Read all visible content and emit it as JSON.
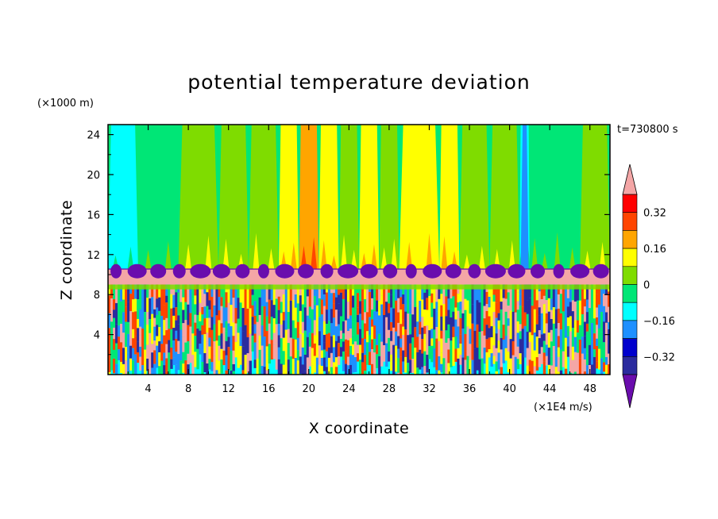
{
  "chart_data": {
    "type": "heatmap",
    "title": "potential temperature deviation",
    "xlabel": "X coordinate",
    "ylabel": "Z coordinate",
    "x_unit": "(×1E4 m/s)",
    "y_unit": "(×1000 m)",
    "time_label": "t=730800 s",
    "xlim": [
      0,
      50
    ],
    "ylim": [
      0,
      25
    ],
    "x_ticks": [
      4,
      8,
      12,
      16,
      20,
      24,
      28,
      32,
      36,
      40,
      44,
      48
    ],
    "y_ticks": [
      4,
      8,
      12,
      16,
      20,
      24
    ],
    "colorbar": {
      "levels": [
        -0.4,
        -0.32,
        -0.24,
        -0.16,
        -0.08,
        0,
        0.08,
        0.16,
        0.24,
        0.32,
        0.4
      ],
      "colors": [
        "#6a0dad",
        "#2b2b9e",
        "#0000cd",
        "#1e90ff",
        "#00ffff",
        "#00e676",
        "#7fdc00",
        "#ffff00",
        "#ffa500",
        "#ff4500",
        "#ff0000",
        "#f4a6a6"
      ],
      "under_color": "#6a0dad",
      "over_color": "#f4a6a6",
      "tick_labels": [
        "0.32",
        "0.16",
        "0",
        "−0.16",
        "−0.32"
      ],
      "tick_values": [
        0.32,
        0.16,
        0,
        -0.16,
        -0.32
      ]
    },
    "upper_bands": [
      {
        "x0": 0,
        "x1": 3,
        "value": -0.1
      },
      {
        "x0": 3,
        "x1": 7,
        "value": -0.02
      },
      {
        "x0": 7,
        "x1": 11,
        "value": 0.02
      },
      {
        "x0": 11,
        "x1": 14,
        "value": 0.05
      },
      {
        "x0": 14,
        "x1": 17,
        "value": 0.07
      },
      {
        "x0": 17,
        "x1": 19,
        "value": 0.1
      },
      {
        "x0": 19,
        "x1": 21,
        "value": 0.2
      },
      {
        "x0": 21,
        "x1": 23,
        "value": 0.1
      },
      {
        "x0": 23,
        "x1": 25,
        "value": 0.05
      },
      {
        "x0": 25,
        "x1": 27,
        "value": 0.1
      },
      {
        "x0": 27,
        "x1": 29,
        "value": 0.03
      },
      {
        "x0": 29,
        "x1": 33,
        "value": 0.12
      },
      {
        "x0": 33,
        "x1": 35,
        "value": 0.1
      },
      {
        "x0": 35,
        "x1": 38,
        "value": 0.05
      },
      {
        "x0": 38,
        "x1": 41,
        "value": 0.0
      },
      {
        "x0": 41,
        "x1": 42,
        "value": -0.15
      },
      {
        "x0": 42,
        "x1": 44,
        "value": -0.05
      },
      {
        "x0": 44,
        "x1": 47,
        "value": -0.02
      },
      {
        "x0": 47,
        "x1": 50,
        "value": 0.0
      }
    ],
    "inversion_layer": {
      "z0": 10.5,
      "z1": 9.0,
      "value": 0.45
    },
    "trough_layer": {
      "z0": 10.6,
      "z1": 8.8,
      "value": -0.45
    },
    "lower_region": {
      "z0": 0,
      "z1": 9.0,
      "description_values": [
        -0.4,
        -0.24,
        -0.08,
        0.08,
        0.24,
        0.4
      ]
    }
  }
}
